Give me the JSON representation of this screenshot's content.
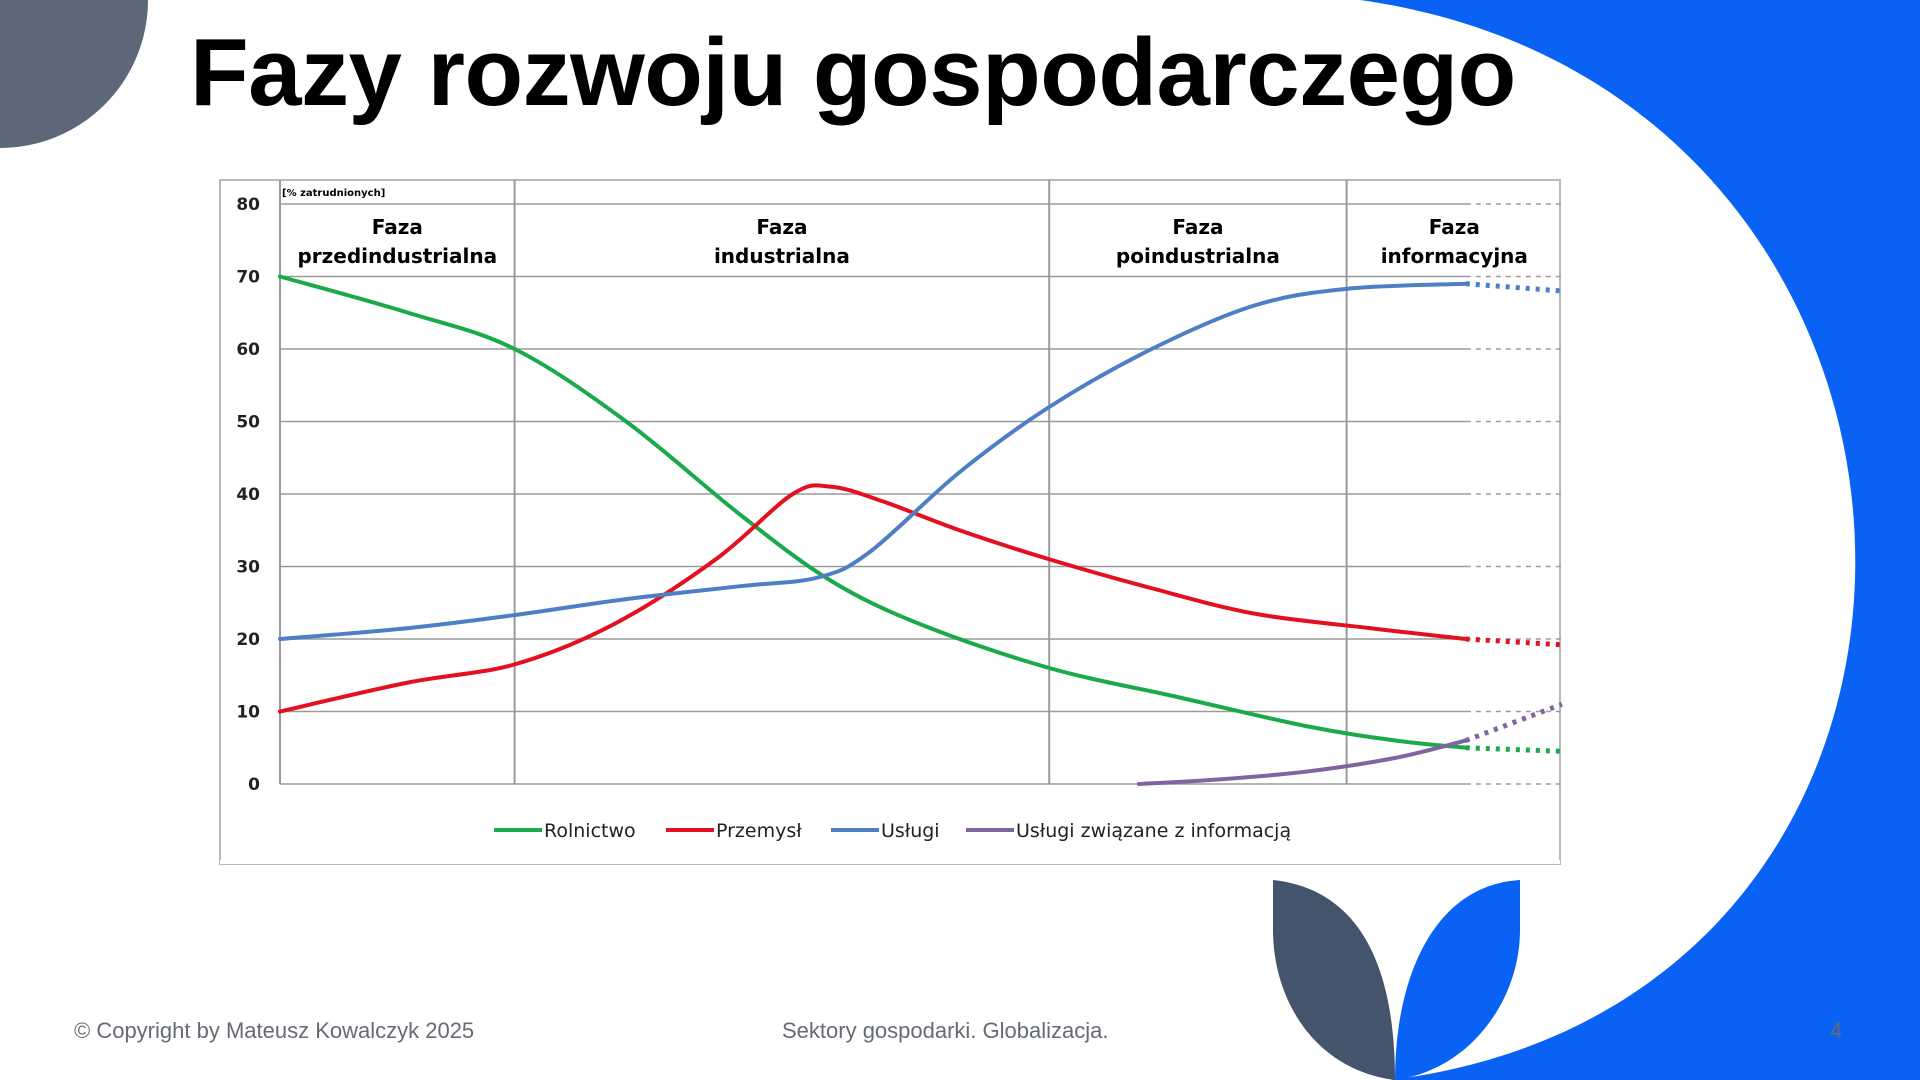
{
  "slide": {
    "title": "Fazy rozwoju gospodarczego",
    "footer_left": "© Copyright by Mateusz Kowalczyk 2025",
    "footer_center": "Sektory gospodarki. Globalizacja.",
    "page_number": "4"
  },
  "colors": {
    "accent_blue": "#0a62f5",
    "slate": "#44546a",
    "grey_circle": "#5c6878"
  },
  "chart_data": {
    "type": "line",
    "unit_label": "[% zatrudnionych]",
    "ylim": [
      0,
      80
    ],
    "y_ticks": [
      "0",
      "10",
      "20",
      "30",
      "40",
      "50",
      "60",
      "70",
      "80"
    ],
    "xlim": [
      0,
      100
    ],
    "grid": true,
    "legend_position": "bottom",
    "phases": [
      {
        "line1": "Faza",
        "line2": "przedindustrialna",
        "x_start": 0,
        "x_end": 18.3
      },
      {
        "line1": "Faza",
        "line2": "industrialna",
        "x_start": 18.3,
        "x_end": 60
      },
      {
        "line1": "Faza",
        "line2": "poindustrialna",
        "x_start": 60,
        "x_end": 83.2
      },
      {
        "line1": "Faza",
        "line2": "informacyjna",
        "x_start": 83.2,
        "x_end": 100
      }
    ],
    "solid_end_x": 92.5,
    "series": [
      {
        "name": "Rolnictwo",
        "color": "#1aaa4a",
        "points": [
          [
            0,
            70
          ],
          [
            10,
            65
          ],
          [
            18.3,
            60
          ],
          [
            27,
            50
          ],
          [
            36,
            37
          ],
          [
            43,
            28
          ],
          [
            50,
            22
          ],
          [
            60,
            16
          ],
          [
            70,
            12
          ],
          [
            80,
            8
          ],
          [
            87,
            6
          ],
          [
            92.5,
            5
          ]
        ],
        "projection": [
          [
            92.5,
            5
          ],
          [
            100,
            4.5
          ]
        ]
      },
      {
        "name": "Przemysł",
        "color": "#e3101f",
        "points": [
          [
            0,
            10
          ],
          [
            10,
            14
          ],
          [
            18.3,
            16.5
          ],
          [
            26,
            22
          ],
          [
            34,
            31
          ],
          [
            40,
            40
          ],
          [
            43,
            41
          ],
          [
            47,
            39
          ],
          [
            53,
            35
          ],
          [
            60,
            31
          ],
          [
            68,
            27
          ],
          [
            76,
            23.5
          ],
          [
            85,
            21.5
          ],
          [
            92.5,
            20
          ]
        ],
        "projection": [
          [
            92.5,
            20
          ],
          [
            100,
            19.2
          ]
        ]
      },
      {
        "name": "Usługi",
        "color": "#4e7fc4",
        "points": [
          [
            0,
            20
          ],
          [
            10,
            21.5
          ],
          [
            18.3,
            23.3
          ],
          [
            27,
            25.5
          ],
          [
            36,
            27.3
          ],
          [
            42,
            28.5
          ],
          [
            46,
            32
          ],
          [
            53,
            43
          ],
          [
            60,
            52
          ],
          [
            68,
            60
          ],
          [
            76,
            66
          ],
          [
            83.2,
            68.3
          ],
          [
            92.5,
            69
          ]
        ],
        "projection": [
          [
            92.5,
            69
          ],
          [
            100,
            68
          ]
        ]
      },
      {
        "name": "Usługi związane z informacją",
        "color": "#8064a2",
        "points": [
          [
            67,
            0
          ],
          [
            73,
            0.6
          ],
          [
            80,
            1.7
          ],
          [
            87,
            3.6
          ],
          [
            92.5,
            6
          ]
        ],
        "projection": [
          [
            92.5,
            6
          ],
          [
            100,
            11
          ]
        ]
      }
    ]
  }
}
